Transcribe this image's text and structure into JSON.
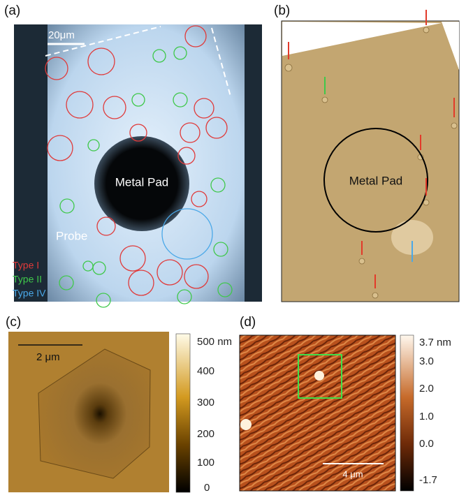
{
  "panels": [
    {
      "label": "(a)",
      "scale_bar": "20μm",
      "pad": "Metal Pad",
      "probe": "Probe",
      "legend": [
        "Type I",
        "Type II",
        "Type IV"
      ]
    },
    {
      "label": "(b)",
      "pad": "Metal Pad"
    },
    {
      "label": "(c)",
      "scale_bar": "2 μm",
      "colorbar": [
        "500 nm",
        "400",
        "300",
        "200",
        "100",
        "0"
      ]
    },
    {
      "label": "(d)",
      "scale_bar": "4 μm",
      "colorbar": [
        "3.7 nm",
        "3.0",
        "2.0",
        "1.0",
        "0.0",
        "-1.7"
      ]
    }
  ]
}
